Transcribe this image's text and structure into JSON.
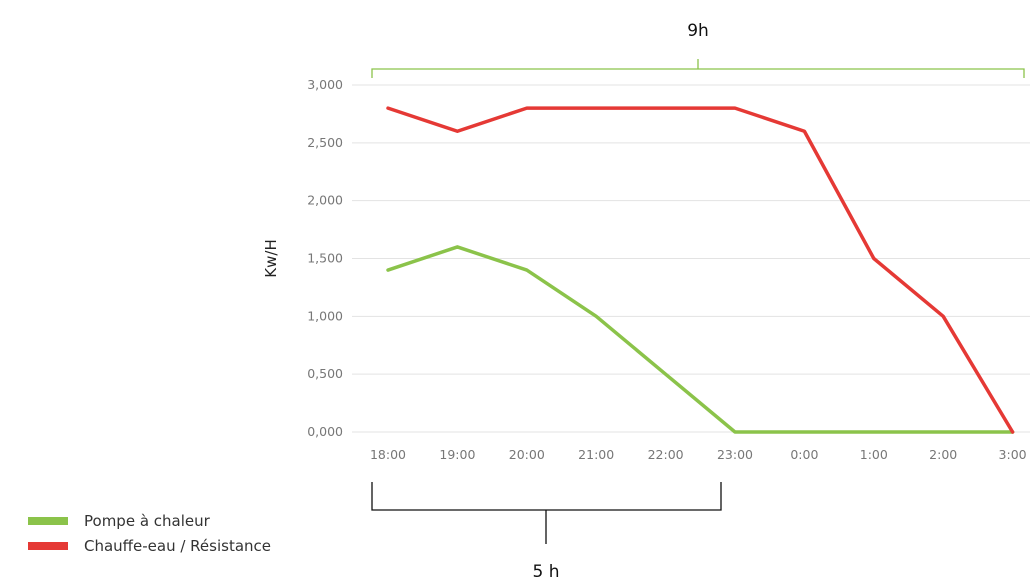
{
  "chart_data": {
    "type": "line",
    "categories": [
      "18:00",
      "19:00",
      "20:00",
      "21:00",
      "22:00",
      "23:00",
      "0:00",
      "1:00",
      "2:00",
      "3:00"
    ],
    "ylabel": "Kw/H",
    "xlabel": "",
    "ylim": [
      0,
      3
    ],
    "yticks": [
      "0,000",
      "0,500",
      "1,000",
      "1,500",
      "2,000",
      "2,500",
      "3,000"
    ],
    "grid": true,
    "legend_position": "bottom-left",
    "series": [
      {
        "name": "Pompe à chaleur",
        "color": "#8bc34a",
        "values": [
          1.4,
          1.6,
          1.4,
          1.0,
          0.5,
          0.0,
          0.0,
          0.0,
          0.0,
          0.0
        ]
      },
      {
        "name": "Chauffe-eau / Résistance",
        "color": "#e53935",
        "values": [
          2.8,
          2.6,
          2.8,
          2.8,
          2.8,
          2.8,
          2.6,
          1.5,
          1.0,
          0.0
        ]
      }
    ],
    "annotations": [
      {
        "label": "9h",
        "from": "18:00",
        "to": "3:00",
        "position": "top",
        "color": "#8bc34a"
      },
      {
        "label": "5 h",
        "from": "18:00",
        "to": "23:00",
        "position": "bottom",
        "color": "#111111"
      }
    ]
  }
}
